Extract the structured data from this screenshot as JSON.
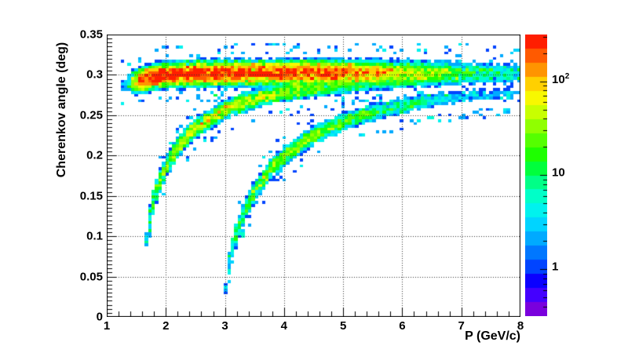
{
  "colors": {
    "background": "#ffffff",
    "axis": "#000000",
    "grid": "#333333",
    "text": "#000000"
  },
  "chart_data": {
    "type": "heatmap",
    "title": "",
    "xlabel": "P (GeV/c)",
    "ylabel": "Cherenkov angle (deg)",
    "xlim": [
      1,
      8
    ],
    "ylim": [
      0,
      0.35
    ],
    "x_ticks": [
      1,
      2,
      3,
      4,
      5,
      6,
      7,
      8
    ],
    "x_tick_labels": [
      "1",
      "2",
      "3",
      "4",
      "5",
      "6",
      "7",
      "8"
    ],
    "x_minor_step": 0.2,
    "y_ticks": [
      0,
      0.05,
      0.1,
      0.15,
      0.2,
      0.25,
      0.3,
      0.35
    ],
    "y_tick_labels": [
      "0",
      "0.05",
      "0.1",
      "0.15",
      "0.2",
      "0.25",
      "0.3",
      "0.35"
    ],
    "y_minor_step": 0.005,
    "grid": true,
    "legend": "none",
    "z_scale": "log",
    "z_range": [
      0.316,
      316
    ],
    "colorbar_ticks": [
      {
        "value": 1,
        "label": "1",
        "exp": ""
      },
      {
        "value": 10,
        "label": "10",
        "exp": ""
      },
      {
        "value": 100,
        "label": "10",
        "exp": "2"
      }
    ],
    "palette": [
      "#7a00dd",
      "#4400ff",
      "#0b00ff",
      "#0044ff",
      "#0077ff",
      "#00aaff",
      "#00d4ff",
      "#00f2ee",
      "#00ffc8",
      "#00ff87",
      "#00ff3c",
      "#1eff00",
      "#55ff00",
      "#90ff00",
      "#c8ff00",
      "#f8f800",
      "#ffd000",
      "#ff9400",
      "#ff5a00",
      "#ff1e00"
    ],
    "bins": {
      "nx": 120,
      "ny": 100
    },
    "bands": [
      {
        "name": "pion-saturated-band",
        "sigma": 0.0055,
        "range": [
          1.25,
          8
        ],
        "points": [
          [
            1.3,
            0.2865
          ],
          [
            1.45,
            0.29
          ],
          [
            1.6,
            0.294
          ],
          [
            1.8,
            0.2975
          ],
          [
            2.0,
            0.2995
          ],
          [
            2.5,
            0.3015
          ],
          [
            3.0,
            0.302
          ],
          [
            4.0,
            0.3025
          ],
          [
            5.0,
            0.303
          ],
          [
            6.0,
            0.303
          ],
          [
            7.0,
            0.3032
          ],
          [
            8.0,
            0.3035
          ]
        ],
        "peak": [
          [
            1.3,
            1.2
          ],
          [
            1.42,
            8
          ],
          [
            1.5,
            60
          ],
          [
            1.6,
            200
          ],
          [
            1.8,
            300
          ],
          [
            3.0,
            300
          ],
          [
            4.0,
            260
          ],
          [
            4.8,
            220
          ],
          [
            5.3,
            140
          ],
          [
            5.8,
            70
          ],
          [
            6.3,
            35
          ],
          [
            6.8,
            18
          ],
          [
            7.3,
            8
          ],
          [
            8.0,
            5
          ]
        ]
      },
      {
        "name": "kaon-band",
        "sigma": 0.0045,
        "range": [
          1.68,
          8
        ],
        "points": [
          [
            1.68,
            0.09
          ],
          [
            1.75,
            0.13
          ],
          [
            1.8,
            0.145
          ],
          [
            1.9,
            0.168
          ],
          [
            2.0,
            0.185
          ],
          [
            2.2,
            0.21
          ],
          [
            2.5,
            0.234
          ],
          [
            3.0,
            0.257
          ],
          [
            3.5,
            0.27
          ],
          [
            4.0,
            0.278
          ],
          [
            4.5,
            0.283
          ],
          [
            5.0,
            0.287
          ],
          [
            5.5,
            0.29
          ],
          [
            6.0,
            0.292
          ],
          [
            7.0,
            0.295
          ],
          [
            8.0,
            0.297
          ]
        ],
        "peak": [
          [
            1.68,
            4
          ],
          [
            1.85,
            12
          ],
          [
            2.0,
            25
          ],
          [
            2.3,
            40
          ],
          [
            2.8,
            45
          ],
          [
            3.5,
            38
          ],
          [
            4.0,
            30
          ],
          [
            4.5,
            22
          ],
          [
            5.0,
            15
          ],
          [
            5.5,
            10
          ],
          [
            6.0,
            7
          ],
          [
            6.5,
            4.5
          ],
          [
            7.0,
            3
          ],
          [
            7.5,
            2
          ],
          [
            8.0,
            1.5
          ]
        ]
      },
      {
        "name": "proton-band",
        "sigma": 0.0045,
        "range": [
          3.02,
          8
        ],
        "points": [
          [
            3.02,
            0.02
          ],
          [
            3.05,
            0.056
          ],
          [
            3.1,
            0.077
          ],
          [
            3.2,
            0.105
          ],
          [
            3.35,
            0.134
          ],
          [
            3.5,
            0.155
          ],
          [
            3.75,
            0.181
          ],
          [
            4.0,
            0.199
          ],
          [
            4.5,
            0.225
          ],
          [
            5.0,
            0.2415
          ],
          [
            5.5,
            0.253
          ],
          [
            6.0,
            0.2615
          ],
          [
            6.5,
            0.268
          ],
          [
            7.0,
            0.273
          ],
          [
            7.5,
            0.277
          ],
          [
            8.0,
            0.28
          ]
        ],
        "peak": [
          [
            3.02,
            2.5
          ],
          [
            3.1,
            5
          ],
          [
            3.3,
            12
          ],
          [
            3.6,
            20
          ],
          [
            4.0,
            28
          ],
          [
            4.4,
            30
          ],
          [
            5.0,
            20
          ],
          [
            5.5,
            13
          ],
          [
            6.0,
            8
          ],
          [
            6.5,
            5
          ],
          [
            7.0,
            3
          ],
          [
            7.5,
            2
          ],
          [
            8.0,
            1.5
          ]
        ]
      }
    ]
  }
}
